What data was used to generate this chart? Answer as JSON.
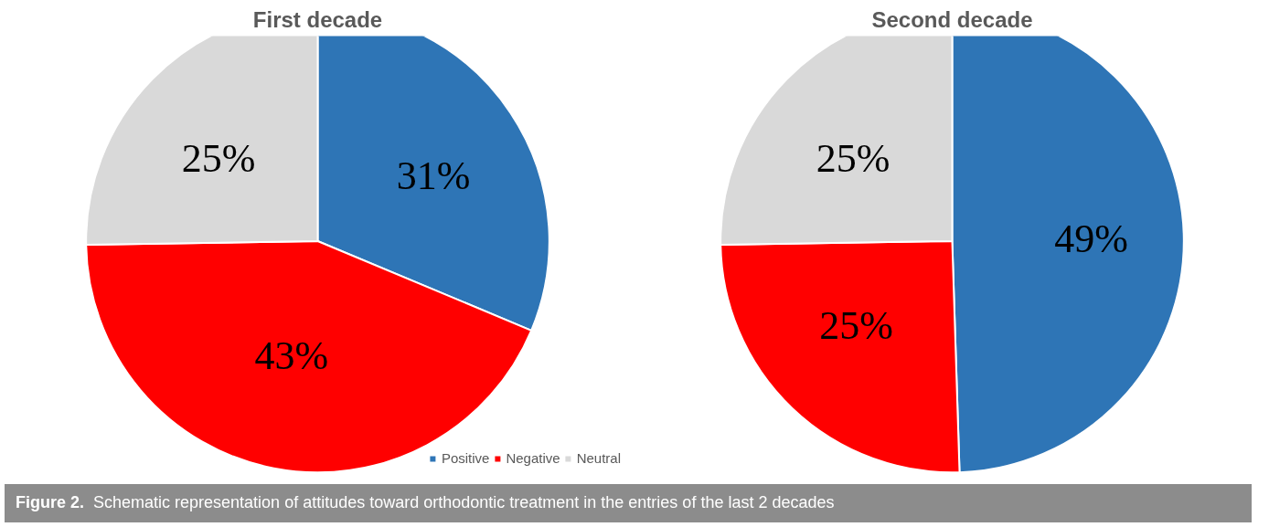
{
  "chart_data": [
    {
      "type": "pie",
      "title": "First decade",
      "categories": [
        "Positive",
        "Negative",
        "Neutral"
      ],
      "values": [
        31,
        43,
        25
      ],
      "value_labels": [
        "31%",
        "43%",
        "25%"
      ],
      "colors": [
        "#2e75b6",
        "#ff0000",
        "#d9d9d9"
      ],
      "legend": "bottom right",
      "annotations": [
        "Figure 2.  Schematic representation of attitudes toward orthodontic treatment in the entries of the last 2 decades"
      ]
    },
    {
      "type": "pie",
      "title": "Second decade",
      "categories": [
        null,
        null,
        null
      ],
      "values": [
        49,
        25,
        25
      ],
      "value_labels": [
        "49%",
        "25%",
        "25%"
      ],
      "colors": [
        "#2e75b6",
        "#ff0000",
        "#d9d9d9"
      ]
    }
  ]
}
